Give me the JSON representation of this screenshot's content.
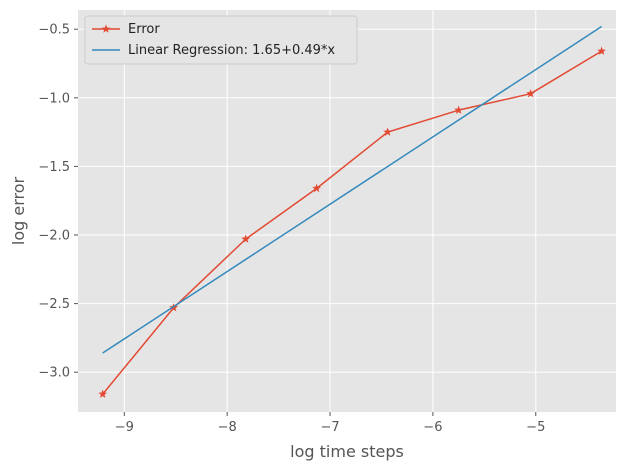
{
  "chart_data": {
    "type": "line",
    "title": "",
    "xlabel": "log time steps",
    "ylabel": "log error",
    "xlim": [
      -9.45,
      -4.22
    ],
    "ylim": [
      -3.29,
      -0.36
    ],
    "xticks": [
      -9,
      -8,
      -7,
      -6,
      -5
    ],
    "yticks": [
      -3.0,
      -2.5,
      -2.0,
      -1.5,
      -1.0,
      -0.5
    ],
    "xtick_labels": [
      "−9",
      "−8",
      "−7",
      "−6",
      "−5"
    ],
    "ytick_labels": [
      "−3.0",
      "−2.5",
      "−2.0",
      "−1.5",
      "−1.0",
      "−0.5"
    ],
    "grid": true,
    "legend_position": "top-left",
    "series": [
      {
        "name": "Error",
        "color": "#E24A33",
        "marker": "star",
        "x": [
          -9.21,
          -8.52,
          -7.82,
          -7.13,
          -6.44,
          -5.75,
          -5.05,
          -4.36
        ],
        "y": [
          -3.16,
          -2.53,
          -2.03,
          -1.66,
          -1.25,
          -1.09,
          -0.97,
          -0.66
        ]
      },
      {
        "name": "Linear Regression: 1.65+0.49*x",
        "color": "#348ABD",
        "marker": "none",
        "x": [
          -9.21,
          -4.36
        ],
        "y": [
          -2.86,
          -0.48
        ]
      }
    ]
  }
}
